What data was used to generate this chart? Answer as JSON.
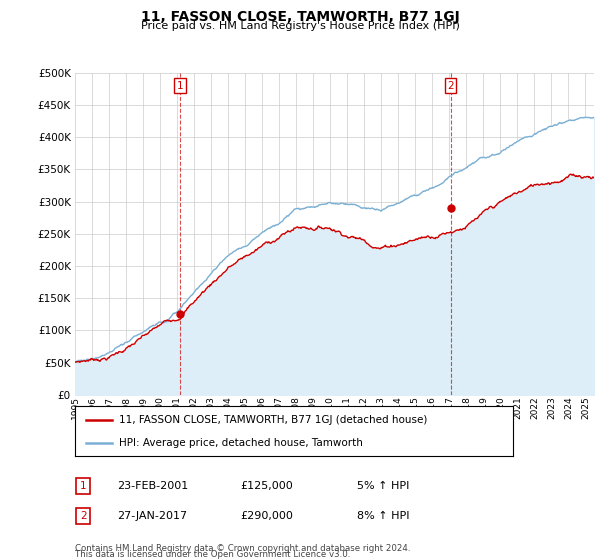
{
  "title": "11, FASSON CLOSE, TAMWORTH, B77 1GJ",
  "subtitle": "Price paid vs. HM Land Registry's House Price Index (HPI)",
  "ytick_values": [
    0,
    50000,
    100000,
    150000,
    200000,
    250000,
    300000,
    350000,
    400000,
    450000,
    500000
  ],
  "ylim": [
    0,
    500000
  ],
  "sale1_x": 2001.15,
  "sale1_y": 125000,
  "sale2_x": 2017.07,
  "sale2_y": 290000,
  "legend_red": "11, FASSON CLOSE, TAMWORTH, B77 1GJ (detached house)",
  "legend_blue": "HPI: Average price, detached house, Tamworth",
  "sale1_date": "23-FEB-2001",
  "sale1_price": "£125,000",
  "sale1_pct": "5% ↑ HPI",
  "sale2_date": "27-JAN-2017",
  "sale2_price": "£290,000",
  "sale2_pct": "8% ↑ HPI",
  "footnote_line1": "Contains HM Land Registry data © Crown copyright and database right 2024.",
  "footnote_line2": "This data is licensed under the Open Government Licence v3.0.",
  "grid_color": "#cccccc",
  "red_color": "#cc0000",
  "blue_color": "#7aafd4",
  "blue_fill_color": "#ddeef8",
  "xmin": 1995,
  "xmax": 2025.5
}
